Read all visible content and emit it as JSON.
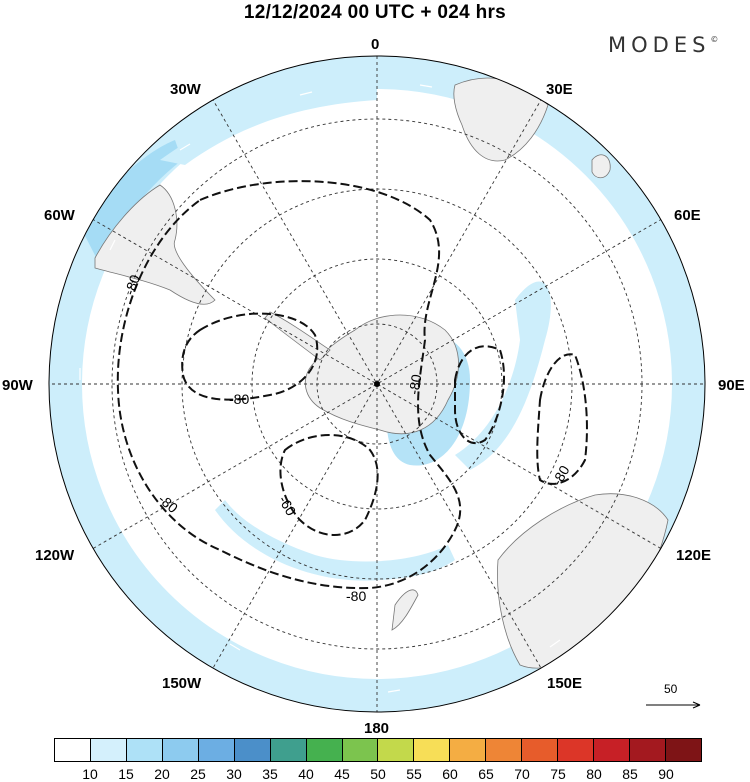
{
  "title": "12/12/2024  00 UTC  + 024 hrs",
  "brand": {
    "name": "MODES",
    "mark": "©"
  },
  "map": {
    "projection": "polar-stereographic-south",
    "center": "South Pole",
    "longitude_labels": [
      "0",
      "30E",
      "60E",
      "90E",
      "120E",
      "150E",
      "180",
      "150W",
      "120W",
      "90W",
      "60W",
      "30W"
    ],
    "gridlines": "dashed",
    "contour_labels": [
      "-80",
      "-80",
      "-80",
      "-80",
      "-80",
      "-80",
      "-60"
    ],
    "colors": {
      "land": "#efefef",
      "ocean": "#ffffff",
      "shade_light": "#cdeefb",
      "shade_medium": "#a5dcf5",
      "shade_strong": "#86c8ee",
      "contour": "#111111"
    }
  },
  "reference_vector": {
    "label": "50"
  },
  "colorbar": {
    "labels": [
      "10",
      "15",
      "20",
      "25",
      "30",
      "35",
      "40",
      "45",
      "50",
      "55",
      "60",
      "65",
      "70",
      "75",
      "80",
      "85",
      "90"
    ],
    "colors": [
      "#ffffff",
      "#d4f0fc",
      "#aee1f7",
      "#8dcbef",
      "#6caee3",
      "#4b8fc9",
      "#3f9f8e",
      "#45b14f",
      "#7cc44e",
      "#c3d94b",
      "#f7de57",
      "#f4ad43",
      "#ee8536",
      "#e75c2b",
      "#dc3628",
      "#c72026",
      "#a3191f",
      "#7e1416"
    ]
  }
}
